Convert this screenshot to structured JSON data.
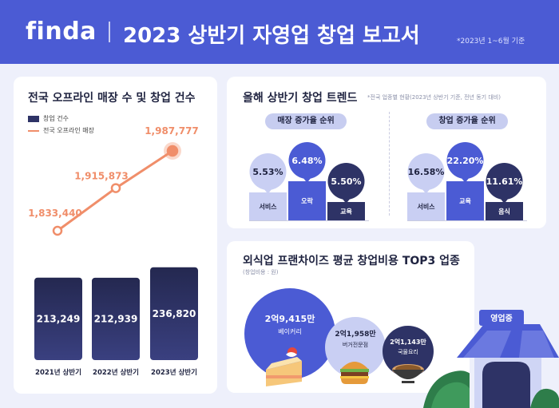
{
  "header": {
    "logo": "finda",
    "title": "2023 상반기 자영업 창업 보고서",
    "note": "*2023년 1~6월 기준"
  },
  "left_panel": {
    "title": "전국 오프라인 매장 수 및 창업 건수",
    "legend_bar": "창업 건수",
    "legend_line": "전국 오프라인 매장"
  },
  "trend_panel": {
    "title": "올해 상반기 창업 트렌드",
    "note": "*전국 업종별 현황(2023년 상반기 기준, 전년 동기 대비)",
    "left_group_label": "매장 증가율 순위",
    "right_group_label": "창업 증가율 순위"
  },
  "franchise_panel": {
    "title": "외식업 프랜차이즈 평균 창업비용 TOP3 업종",
    "note": "(창업비용 : 원)",
    "items": [
      {
        "value": "2억9,415만",
        "label": "베이커리"
      },
      {
        "value": "2억1,958만",
        "label": "버거전문점"
      },
      {
        "value": "2억1,143만",
        "label": "국물요리"
      }
    ]
  },
  "chart_data": [
    {
      "type": "bar",
      "title": "전국 오프라인 매장 수 및 창업 건수",
      "categories": [
        "2021년 상반기",
        "2022년 상반기",
        "2023년 상반기"
      ],
      "series": [
        {
          "name": "창업 건수",
          "values": [
            213249,
            212939,
            236820
          ],
          "labels": [
            "213,249",
            "212,939",
            "236,820"
          ],
          "type": "bar"
        },
        {
          "name": "전국 오프라인 매장",
          "values": [
            1833440,
            1915873,
            1987777
          ],
          "labels": [
            "1,833,440",
            "1,915,873",
            "1,987,777"
          ],
          "type": "line"
        }
      ]
    },
    {
      "type": "bar",
      "title": "매장 증가율 순위",
      "unit": "%",
      "categories": [
        "서비스",
        "오락",
        "교육"
      ],
      "values": [
        5.53,
        6.48,
        5.5
      ],
      "labels": [
        "5.53%",
        "6.48%",
        "5.50%"
      ]
    },
    {
      "type": "bar",
      "title": "창업 증가율 순위",
      "unit": "%",
      "categories": [
        "서비스",
        "교육",
        "음식"
      ],
      "values": [
        16.58,
        22.2,
        11.61
      ],
      "labels": [
        "16.58%",
        "22.20%",
        "11.61%"
      ]
    }
  ],
  "colors": {
    "brand": "#4b5bd4",
    "bar_dark": "#2a2f5c",
    "line": "#f08e6a",
    "bubble_light": "#c9cff3",
    "bubble_mid": "#4b5bd4",
    "bubble_dark": "#2e3366"
  },
  "icons": [
    "cake-icon",
    "burger-icon",
    "soup-bowl-icon",
    "store-icon"
  ],
  "store_sign": "영업중"
}
